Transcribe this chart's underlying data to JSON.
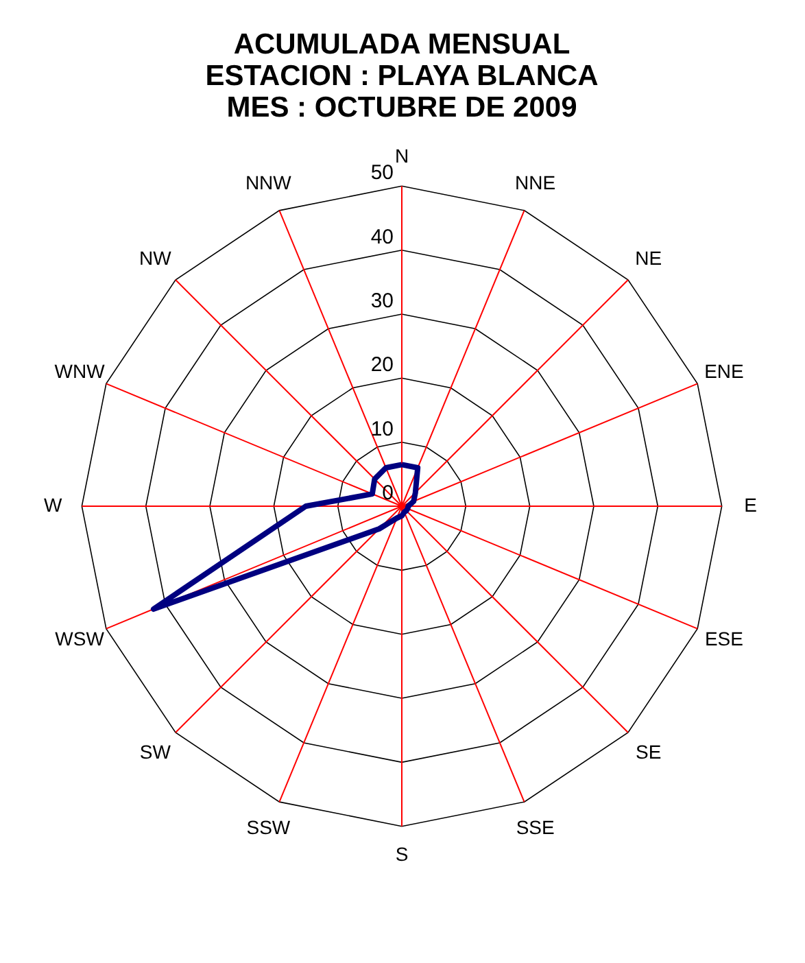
{
  "chart_data": {
    "type": "radar",
    "title": [
      "ACUMULADA MENSUAL",
      "ESTACION : PLAYA BLANCA",
      "MES : OCTUBRE DE 2009"
    ],
    "categories": [
      "N",
      "NNE",
      "NE",
      "ENE",
      "E",
      "ESE",
      "SE",
      "SSE",
      "S",
      "SSW",
      "SW",
      "WSW",
      "W",
      "WNW",
      "NW",
      "NNW"
    ],
    "series": [
      {
        "color": "#000080",
        "values": [
          6.5,
          6.5,
          3,
          2,
          1,
          1,
          1,
          1,
          1.5,
          2,
          5,
          42,
          15,
          5,
          6,
          6.5
        ]
      }
    ],
    "ylim": [
      0,
      50
    ],
    "yticks": [
      0,
      10,
      20,
      30,
      40,
      50
    ],
    "grid": true,
    "legend": false,
    "marker": "none",
    "line_style": "solid"
  }
}
